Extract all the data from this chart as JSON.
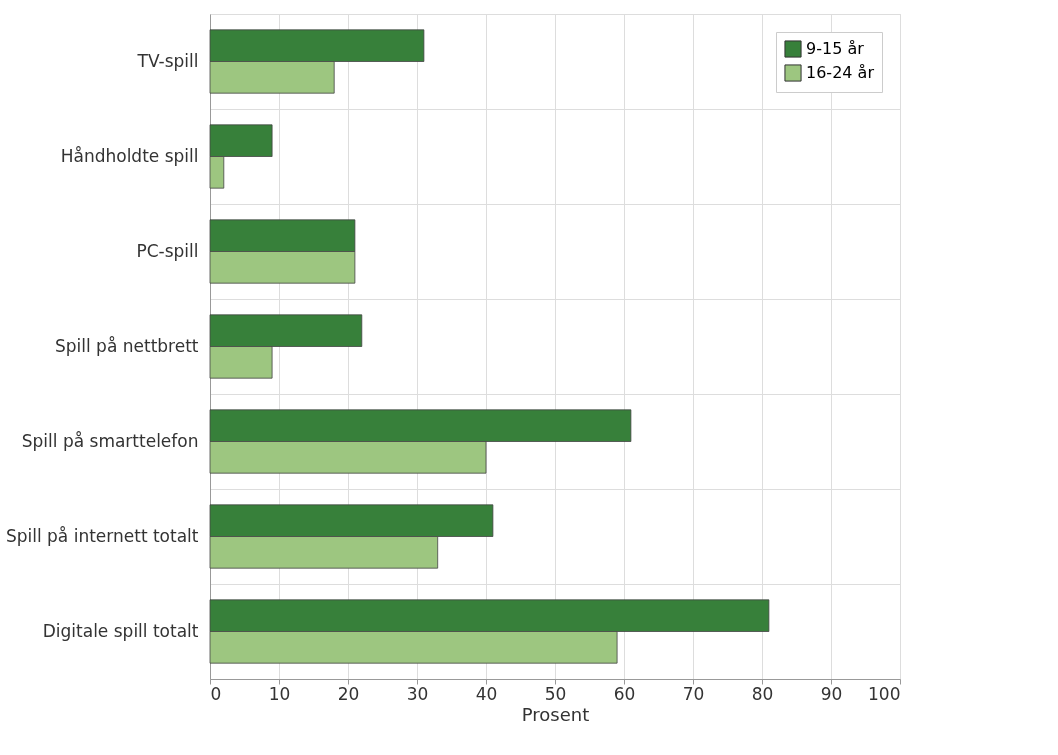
{
  "chart_data": {
    "type": "bar",
    "orientation": "horizontal",
    "xlabel": "Prosent",
    "categories": [
      "TV-spill",
      "Håndholdte spill",
      "PC-spill",
      "Spill på nettbrett",
      "Spill på smarttelefon",
      "Spill på internett totalt",
      "Digitale spill totalt"
    ],
    "series": [
      {
        "name": "9-15 år",
        "color": "#37803a",
        "values": [
          31,
          9,
          21,
          22,
          61,
          41,
          81
        ]
      },
      {
        "name": "16-24 år",
        "color": "#9dc680",
        "values": [
          18,
          2,
          21,
          9,
          40,
          33,
          59
        ]
      }
    ],
    "xlim": [
      0,
      100
    ],
    "xticks": [
      0,
      10,
      20,
      30,
      40,
      50,
      60,
      70,
      80,
      90,
      100
    ],
    "grid": true,
    "legend": "top right"
  }
}
